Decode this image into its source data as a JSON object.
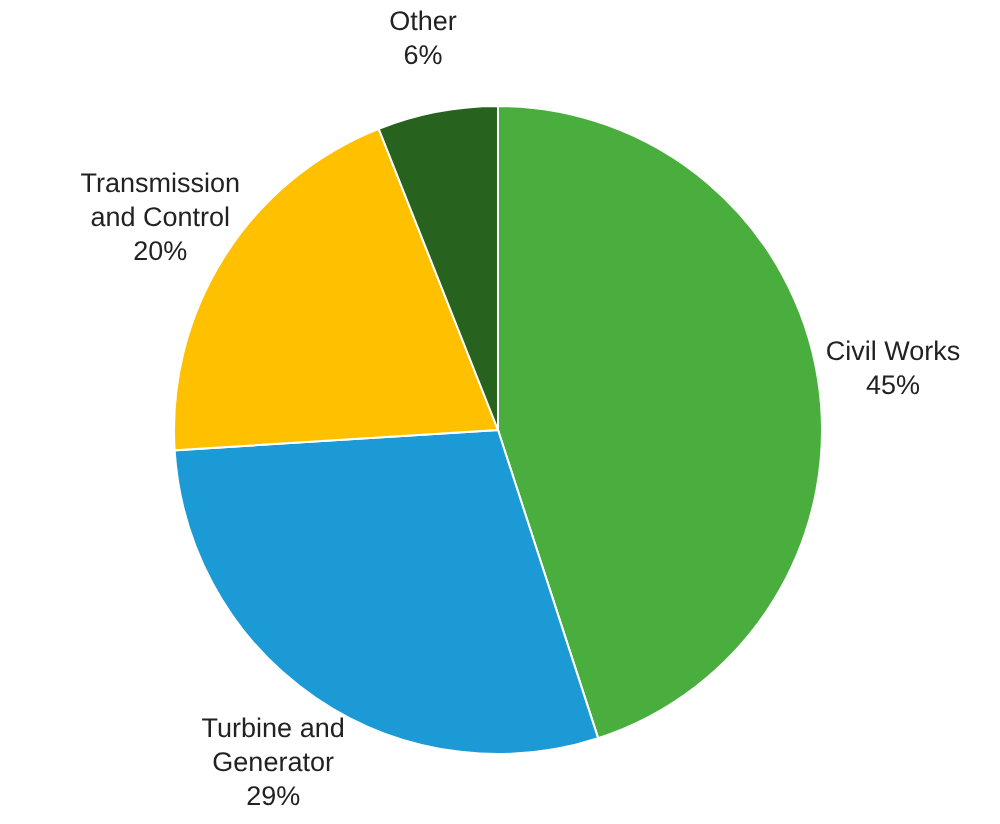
{
  "chart_data": {
    "type": "pie",
    "categories": [
      "Civil Works",
      "Turbine and Generator",
      "Transmission and Control",
      "Other"
    ],
    "values": [
      45,
      29,
      20,
      6
    ],
    "colors": [
      "#4aae3f",
      "#1b9ad6",
      "#ffc000",
      "#27631f"
    ],
    "value_labels": [
      "45%",
      "29%",
      "20%",
      "6%"
    ],
    "legend": false
  }
}
